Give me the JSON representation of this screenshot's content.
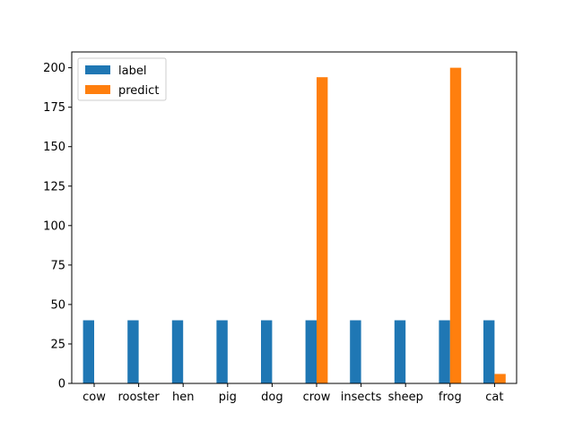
{
  "chart_data": {
    "type": "bar",
    "title": "",
    "xlabel": "",
    "ylabel": "",
    "categories": [
      "cow",
      "rooster",
      "hen",
      "pig",
      "dog",
      "crow",
      "insects",
      "sheep",
      "frog",
      "cat"
    ],
    "series": [
      {
        "name": "label",
        "color": "#1f77b4",
        "values": [
          40,
          40,
          40,
          40,
          40,
          40,
          40,
          40,
          40,
          40
        ]
      },
      {
        "name": "predict",
        "color": "#ff7f0e",
        "values": [
          0,
          0,
          0,
          0,
          0,
          194,
          0,
          0,
          200,
          6
        ]
      }
    ],
    "ylim": [
      0,
      210
    ],
    "yticks": [
      0,
      25,
      50,
      75,
      100,
      125,
      150,
      175,
      200
    ],
    "grid": false,
    "legend_position": "top-left"
  }
}
